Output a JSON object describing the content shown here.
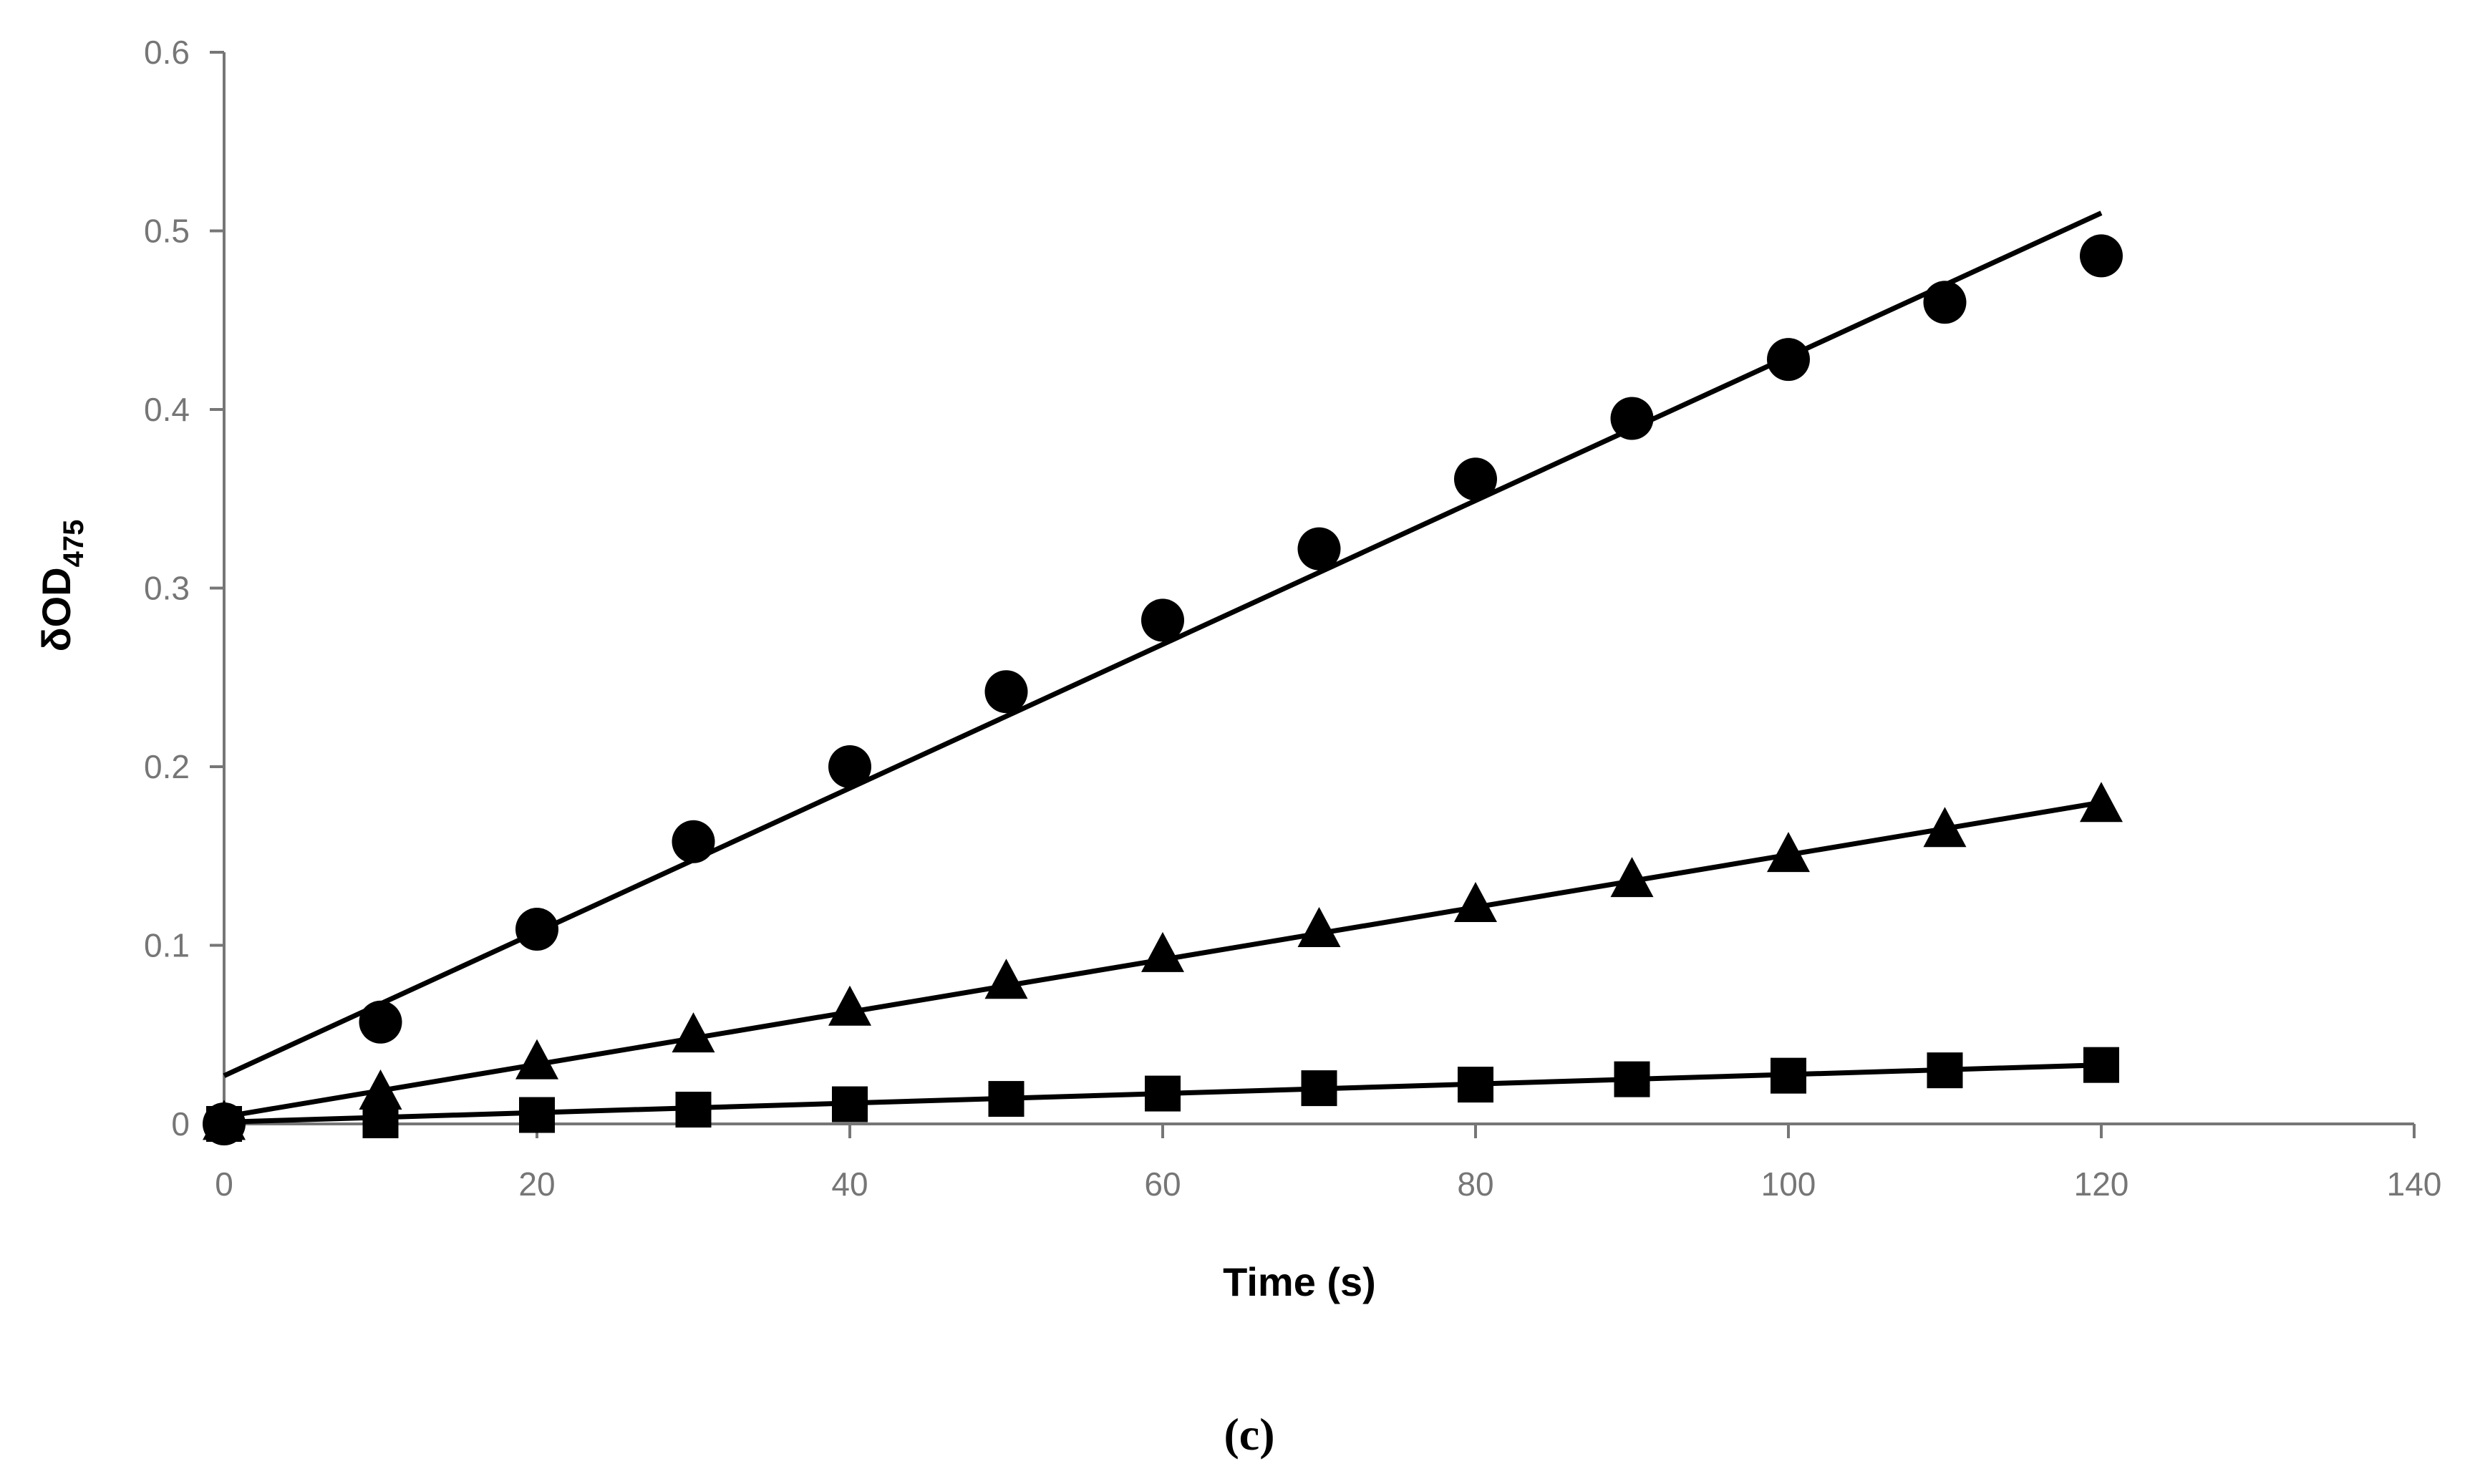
{
  "chart_data": {
    "type": "scatter",
    "title": "",
    "caption": "(c)",
    "xlabel": "Time (s)",
    "ylabel_main": "δOD",
    "ylabel_sub": "475",
    "xlim": [
      0,
      140
    ],
    "ylim": [
      0,
      0.6
    ],
    "x_ticks": [
      0,
      20,
      40,
      60,
      80,
      100,
      120,
      140
    ],
    "x_tick_labels": [
      "0",
      "20",
      "40",
      "60",
      "80",
      "100",
      "120",
      "140"
    ],
    "y_ticks": [
      0,
      0.1,
      0.2,
      0.3,
      0.4,
      0.5,
      0.6
    ],
    "y_tick_labels": [
      "0",
      "0.1",
      "0.2",
      "0.3",
      "0.4",
      "0.5",
      "0.6"
    ],
    "grid": false,
    "legend": "none",
    "colors": {
      "marker": "#000000",
      "axis": "#767676",
      "tick_text": "#767676"
    },
    "series": [
      {
        "name": "circles",
        "marker": "circle",
        "x": [
          0,
          10,
          20,
          30,
          40,
          50,
          60,
          70,
          80,
          90,
          100,
          110,
          120
        ],
        "values": [
          0.0,
          0.057,
          0.109,
          0.158,
          0.2,
          0.242,
          0.282,
          0.322,
          0.361,
          0.395,
          0.428,
          0.46,
          0.486
        ],
        "trendline": {
          "x": [
            0,
            120
          ],
          "y": [
            0.027,
            0.51
          ]
        }
      },
      {
        "name": "triangles",
        "marker": "triangle",
        "x": [
          0,
          10,
          20,
          30,
          40,
          50,
          60,
          70,
          80,
          90,
          100,
          110,
          120
        ],
        "values": [
          0.0,
          0.017,
          0.034,
          0.049,
          0.064,
          0.079,
          0.094,
          0.108,
          0.122,
          0.136,
          0.15,
          0.164,
          0.178
        ],
        "trendline": {
          "x": [
            0,
            120
          ],
          "y": [
            0.004,
            0.18
          ]
        }
      },
      {
        "name": "squares",
        "marker": "square",
        "x": [
          0,
          10,
          20,
          30,
          40,
          50,
          60,
          70,
          80,
          90,
          100,
          110,
          120
        ],
        "values": [
          0.0,
          0.002,
          0.005,
          0.008,
          0.011,
          0.014,
          0.017,
          0.02,
          0.022,
          0.025,
          0.027,
          0.03,
          0.033
        ],
        "trendline": {
          "x": [
            0,
            120
          ],
          "y": [
            0.001,
            0.033
          ]
        }
      }
    ]
  }
}
